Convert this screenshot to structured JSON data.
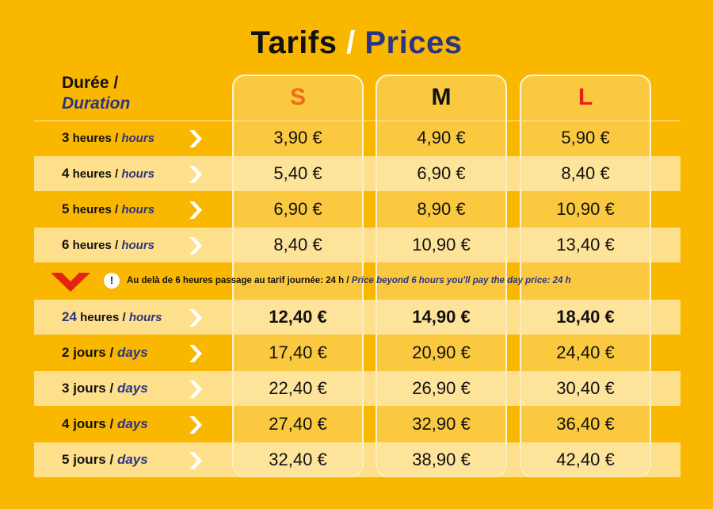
{
  "title": {
    "fr": "Tarifs",
    "slash": "/",
    "en": "Prices"
  },
  "duration_header": {
    "fr": "Durée /",
    "en": "Duration"
  },
  "columns": [
    {
      "label": "S",
      "color": "#F26A1B"
    },
    {
      "label": "M",
      "color": "#111111"
    },
    {
      "label": "L",
      "color": "#E62313"
    }
  ],
  "rows_hours": [
    {
      "num": "3",
      "unit": "heures",
      "sep": "/",
      "en": "hours",
      "prices": [
        "3,90 €",
        "4,90 €",
        "5,90 €"
      ]
    },
    {
      "num": "4",
      "unit": "heures",
      "sep": "/",
      "en": "hours",
      "prices": [
        "5,40 €",
        "6,90 €",
        "8,40 €"
      ]
    },
    {
      "num": "5",
      "unit": "heures",
      "sep": "/",
      "en": "hours",
      "prices": [
        "6,90 €",
        "8,90 €",
        "10,90 €"
      ]
    },
    {
      "num": "6",
      "unit": "heures",
      "sep": "/",
      "en": "hours",
      "prices": [
        "8,40 €",
        "10,90 €",
        "13,40 €"
      ]
    }
  ],
  "notice": {
    "icon": "!",
    "fr": "Au delà de 6 heures passage au tarif journée: 24 h /",
    "en": "Price beyond 6 hours you'll pay the day price: 24 h"
  },
  "rows_days": [
    {
      "num": "24",
      "unit": "heures",
      "sep": "/",
      "en": "hours",
      "prices": [
        "12,40 €",
        "14,90 €",
        "18,40 €"
      ]
    },
    {
      "num": "2",
      "unit": "jours",
      "sep": "/",
      "en": "days",
      "prices": [
        "17,40 €",
        "20,90 €",
        "24,40 €"
      ]
    },
    {
      "num": "3",
      "unit": "jours",
      "sep": "/",
      "en": "days",
      "prices": [
        "22,40 €",
        "26,90 €",
        "30,40 €"
      ]
    },
    {
      "num": "4",
      "unit": "jours",
      "sep": "/",
      "en": "days",
      "prices": [
        "27,40 €",
        "32,90 €",
        "36,40 €"
      ]
    },
    {
      "num": "5",
      "unit": "jours",
      "sep": "/",
      "en": "days",
      "prices": [
        "32,40 €",
        "38,90 €",
        "42,40 €"
      ]
    }
  ],
  "colors": {
    "background": "#F9B700",
    "accent_blue": "#2B3582",
    "chevron_red": "#E62313"
  }
}
